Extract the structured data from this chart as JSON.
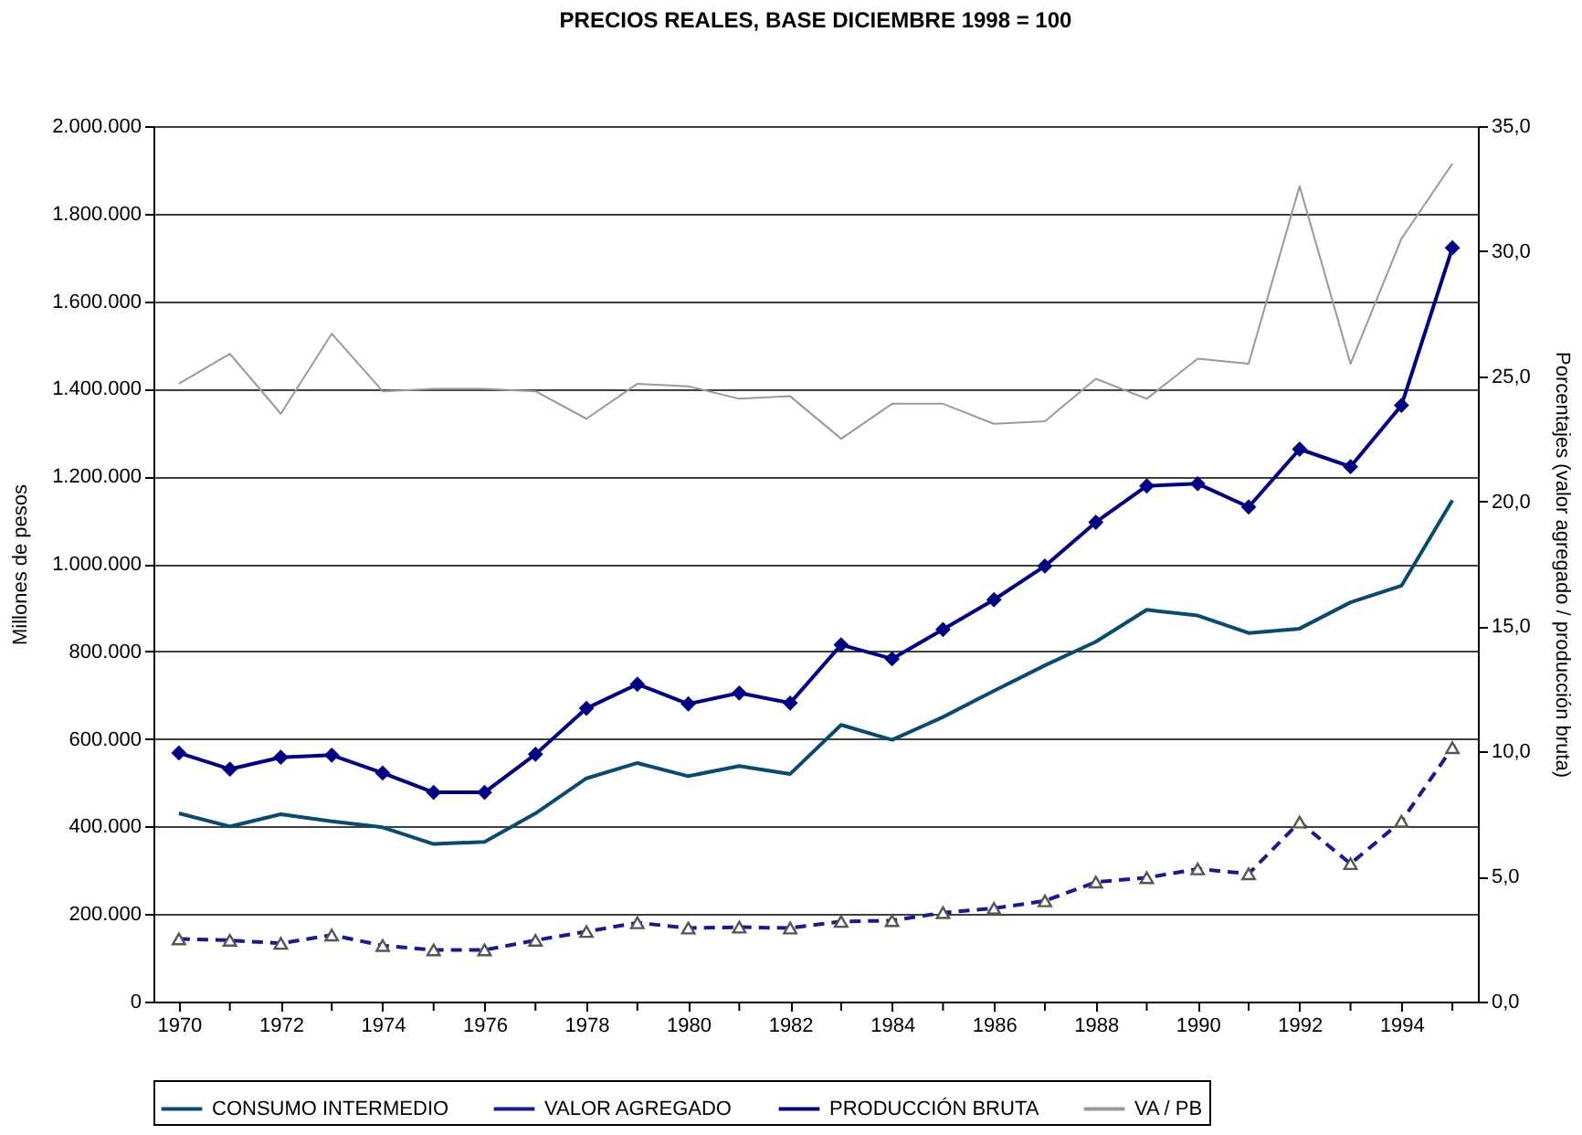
{
  "chart_data": {
    "type": "line",
    "title": "PRECIOS REALES, BASE DICIEMBRE 1998 = 100",
    "ylabel": "Millones de pesos",
    "y2label": "Porcentajes (valor agregado / producción bruta)",
    "x": [
      1970,
      1971,
      1972,
      1973,
      1974,
      1975,
      1976,
      1977,
      1978,
      1979,
      1980,
      1981,
      1982,
      1983,
      1984,
      1985,
      1986,
      1987,
      1988,
      1989,
      1990,
      1991,
      1992,
      1993,
      1994,
      1995
    ],
    "xlim": [
      1969.5,
      1995.5
    ],
    "xticks": [
      1970,
      {
        "value": 1971,
        "label": null
      },
      1972,
      {
        "value": 1973,
        "label": null
      },
      1974,
      {
        "value": 1975,
        "label": null
      },
      1976,
      {
        "value": 1977,
        "label": null
      },
      1978,
      {
        "value": 1979,
        "label": null
      },
      1980,
      {
        "value": 1981,
        "label": null
      },
      1982,
      {
        "value": 1983,
        "label": null
      },
      1984,
      {
        "value": 1985,
        "label": null
      },
      1986,
      {
        "value": 1987,
        "label": null
      },
      1988,
      {
        "value": 1989,
        "label": null
      },
      1990,
      {
        "value": 1991,
        "label": null
      },
      1992,
      {
        "value": 1993,
        "label": null
      },
      1994,
      {
        "value": 1995,
        "label": null
      }
    ],
    "ylim": [
      0,
      2000000
    ],
    "yticks": [
      0,
      {
        "value": 200000,
        "label": "200.000"
      },
      {
        "value": 400000,
        "label": "400.000"
      },
      {
        "value": 600000,
        "label": "600.000"
      },
      {
        "value": 800000,
        "label": "800.000"
      },
      {
        "value": 1000000,
        "label": "1.000.000"
      },
      {
        "value": 1200000,
        "label": "1.200.000"
      },
      {
        "value": 1400000,
        "label": "1.400.000"
      },
      {
        "value": 1600000,
        "label": "1.600.000"
      },
      {
        "value": 1800000,
        "label": "1.800.000"
      },
      {
        "value": 2000000,
        "label": "2.000.000"
      }
    ],
    "y2lim": [
      0,
      35
    ],
    "y2ticks": [
      {
        "value": 0,
        "label": "0,0"
      },
      {
        "value": 5,
        "label": "5,0"
      },
      {
        "value": 10,
        "label": "10,0"
      },
      {
        "value": 15,
        "label": "15,0"
      },
      {
        "value": 20,
        "label": "20,0"
      },
      {
        "value": 25,
        "label": "25,0"
      },
      {
        "value": 30,
        "label": "30,0"
      },
      {
        "value": 35,
        "label": "35,0"
      }
    ],
    "grid": "y",
    "legend": "bottom",
    "series": [
      {
        "name": "CONSUMO INTERMEDIO",
        "color": "#0b4a6f",
        "marker": "none",
        "line_style": "solid",
        "values": [
          430000,
          400000,
          428000,
          412000,
          398000,
          360000,
          365000,
          430000,
          510000,
          545000,
          515000,
          538000,
          520000,
          632000,
          598000,
          650000,
          710000,
          768000,
          822000,
          895000,
          882000,
          842000,
          852000,
          912000,
          950000,
          1145000
        ]
      },
      {
        "name": "VALOR AGREGADO",
        "color": "#1a1a8c",
        "marker": "triangle",
        "line_style": "dashed",
        "values": [
          143000,
          140000,
          133000,
          152000,
          128000,
          118000,
          118000,
          140000,
          160000,
          180000,
          168000,
          170000,
          168000,
          183000,
          185000,
          203000,
          213000,
          230000,
          273000,
          283000,
          303000,
          292000,
          410000,
          315000,
          412000,
          580000
        ]
      },
      {
        "name": "PRODUCCIÓN BRUTA",
        "color": "#000080",
        "marker": "diamond",
        "line_style": "solid",
        "values": [
          568000,
          531000,
          558000,
          563000,
          522000,
          478000,
          478000,
          565000,
          670000,
          725000,
          680000,
          705000,
          682000,
          815000,
          783000,
          850000,
          918000,
          995000,
          1095000,
          1178000,
          1183000,
          1130000,
          1262000,
          1222000,
          1362000,
          1722000
        ]
      },
      {
        "name": "VA / PB",
        "color": "#999999",
        "marker": "none",
        "line_style": "solid",
        "axis": "y2",
        "values": [
          24.7,
          25.9,
          23.5,
          26.7,
          24.4,
          24.5,
          24.5,
          24.4,
          23.3,
          24.7,
          24.6,
          24.1,
          24.2,
          22.5,
          23.9,
          23.9,
          23.1,
          23.2,
          24.9,
          24.1,
          25.7,
          25.5,
          32.6,
          25.5,
          30.5,
          33.5
        ]
      }
    ]
  }
}
